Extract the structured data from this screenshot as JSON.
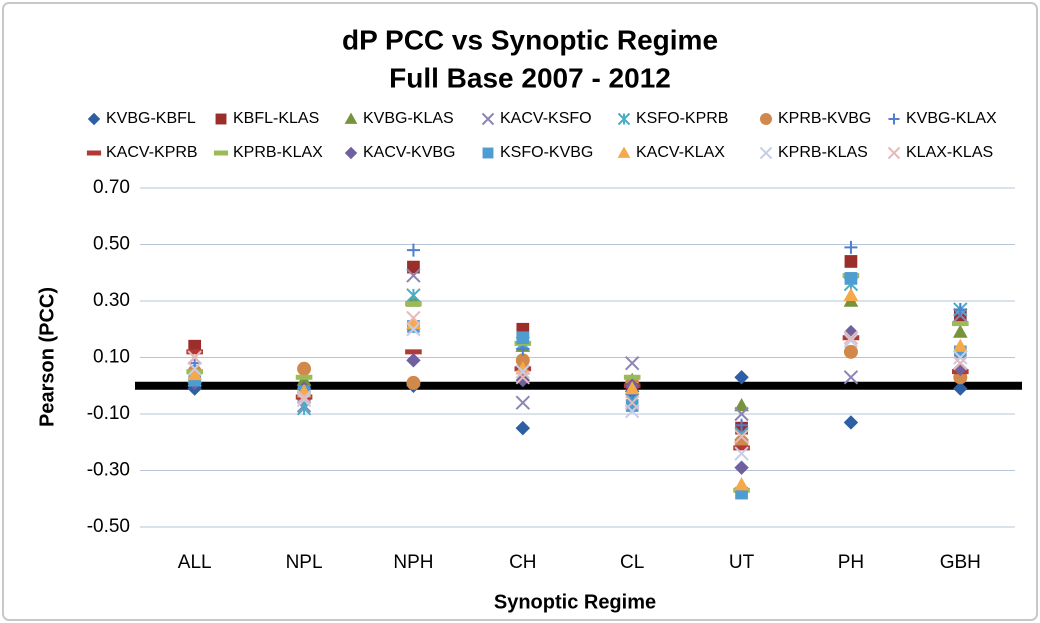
{
  "chart_data": {
    "type": "scatter",
    "title": "dP PCC vs Synoptic Regime",
    "subtitle": "Full Base 2007 - 2012",
    "x_label": "Synoptic Regime",
    "y_label": "Pearson (PCC)",
    "categories": [
      "ALL",
      "NPL",
      "NPH",
      "CH",
      "CL",
      "UT",
      "PH",
      "GBH"
    ],
    "ylim": [
      -0.5,
      0.7
    ],
    "yticks": [
      {
        "value": -0.5,
        "label": "-0.50"
      },
      {
        "value": -0.3,
        "label": "-0.30"
      },
      {
        "value": -0.1,
        "label": "-0.10"
      },
      {
        "value": 0.1,
        "label": "0.10"
      },
      {
        "value": 0.3,
        "label": "0.30"
      },
      {
        "value": 0.5,
        "label": "0.50"
      },
      {
        "value": 0.7,
        "label": "0.70"
      }
    ],
    "grid": true,
    "legend": "top",
    "series": [
      {
        "name": "KVBG-KBFL",
        "color": "#2e5fa4",
        "marker": "diamond",
        "values": [
          -0.01,
          -0.03,
          0.0,
          -0.15,
          -0.02,
          0.03,
          -0.13,
          -0.01
        ]
      },
      {
        "name": "KBFL-KLAS",
        "color": "#9b2d2a",
        "marker": "square",
        "values": [
          0.14,
          -0.04,
          0.42,
          0.2,
          0.01,
          -0.15,
          0.44,
          0.25
        ]
      },
      {
        "name": "KVBG-KLAS",
        "color": "#77933c",
        "marker": "triangle",
        "values": [
          0.03,
          0.02,
          0.3,
          0.14,
          0.02,
          -0.07,
          0.3,
          0.19
        ]
      },
      {
        "name": "KACV-KSFO",
        "color": "#8a85b5",
        "marker": "x",
        "values": [
          0.1,
          -0.07,
          0.39,
          -0.06,
          0.08,
          -0.1,
          0.03,
          0.25
        ]
      },
      {
        "name": "KSFO-KPRB",
        "color": "#4bacc6",
        "marker": "asterisk",
        "values": [
          0.02,
          -0.08,
          0.32,
          0.15,
          -0.05,
          -0.17,
          0.36,
          0.27
        ]
      },
      {
        "name": "KPRB-KVBG",
        "color": "#d0894a",
        "marker": "circle",
        "values": [
          0.05,
          0.06,
          0.01,
          0.09,
          0.01,
          -0.2,
          0.12,
          0.03
        ]
      },
      {
        "name": "KVBG-KLAX",
        "color": "#4e7fd0",
        "marker": "plus",
        "values": [
          0.08,
          -0.02,
          0.48,
          0.13,
          -0.03,
          -0.14,
          0.49,
          0.27
        ]
      },
      {
        "name": "KACV-KPRB",
        "color": "#b03a35",
        "marker": "dash",
        "values": [
          0.12,
          -0.04,
          0.12,
          0.06,
          0.0,
          -0.22,
          0.17,
          0.05
        ]
      },
      {
        "name": "KPRB-KLAX",
        "color": "#9bbb59",
        "marker": "dash",
        "values": [
          0.05,
          0.03,
          0.29,
          0.15,
          0.03,
          -0.37,
          0.39,
          0.22
        ]
      },
      {
        "name": "KACV-KVBG",
        "color": "#7060a0",
        "marker": "diamond",
        "values": [
          0.01,
          -0.01,
          0.09,
          0.02,
          0.0,
          -0.29,
          0.19,
          0.06
        ]
      },
      {
        "name": "KSFO-KVBG",
        "color": "#4f9cd0",
        "marker": "square",
        "values": [
          0.02,
          -0.02,
          0.21,
          0.17,
          -0.07,
          -0.38,
          0.38,
          0.12
        ]
      },
      {
        "name": "KACV-KLAX",
        "color": "#f5a94a",
        "marker": "triangle",
        "values": [
          0.04,
          -0.02,
          0.22,
          0.06,
          -0.01,
          -0.35,
          0.32,
          0.14
        ]
      },
      {
        "name": "KPRB-KLAS",
        "color": "#c5cde8",
        "marker": "x",
        "values": [
          0.06,
          -0.05,
          0.2,
          0.05,
          -0.09,
          -0.24,
          0.16,
          0.1
        ]
      },
      {
        "name": "KLAX-KLAS",
        "color": "#e6b9b8",
        "marker": "x",
        "values": [
          0.1,
          -0.04,
          0.24,
          0.03,
          -0.06,
          -0.18,
          0.17,
          0.08
        ]
      }
    ]
  }
}
